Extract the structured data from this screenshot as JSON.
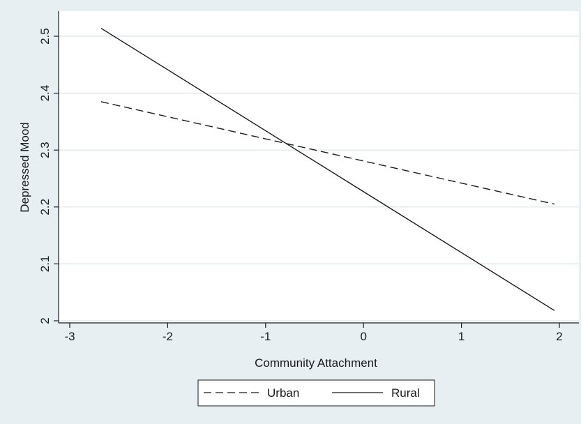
{
  "chart_data": {
    "type": "line",
    "title": "",
    "xlabel": "Community Attachment",
    "ylabel": "Depressed Mood",
    "xlim": [
      -3,
      2
    ],
    "ylim": [
      2,
      2.5
    ],
    "xticks": [
      -3,
      -2,
      -1,
      0,
      1,
      2
    ],
    "yticks": [
      2,
      2.1,
      2.2,
      2.3,
      2.4,
      2.5
    ],
    "xtick_labels": [
      "-3",
      "-2",
      "-1",
      "0",
      "1",
      "2"
    ],
    "ytick_labels": [
      "2",
      "2.1",
      "2.2",
      "2.3",
      "2.4",
      "2.5"
    ],
    "grid": true,
    "legend_position": "bottom",
    "series": [
      {
        "name": "Urban",
        "style": "dashed",
        "color": "#1a1a1a",
        "x": [
          -2.68,
          1.95
        ],
        "y": [
          2.385,
          2.205
        ]
      },
      {
        "name": "Rural",
        "style": "solid",
        "color": "#1a1a1a",
        "x": [
          -2.68,
          1.95
        ],
        "y": [
          2.514,
          2.018
        ]
      }
    ]
  }
}
